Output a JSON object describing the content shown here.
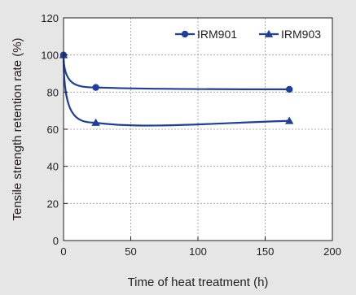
{
  "chart_data": {
    "type": "line",
    "title": "",
    "xlabel": "Time of heat treatment (h)",
    "ylabel": "Tensile strength retention rate (%)",
    "xlim": [
      0,
      200
    ],
    "ylim": [
      0,
      120
    ],
    "xticks": [
      0,
      50,
      100,
      150,
      200
    ],
    "yticks": [
      0,
      20,
      40,
      60,
      80,
      100,
      120
    ],
    "grid": true,
    "legend_position": "top-right",
    "series": [
      {
        "name": "IRM901",
        "marker": "circle",
        "color": "#1f3f9a",
        "x": [
          0,
          24,
          168
        ],
        "y": [
          100,
          82.5,
          81.5
        ]
      },
      {
        "name": "IRM903",
        "marker": "triangle",
        "color": "#1f3f9a",
        "x": [
          0,
          24,
          168
        ],
        "y": [
          100,
          63.5,
          64.5
        ]
      }
    ]
  }
}
